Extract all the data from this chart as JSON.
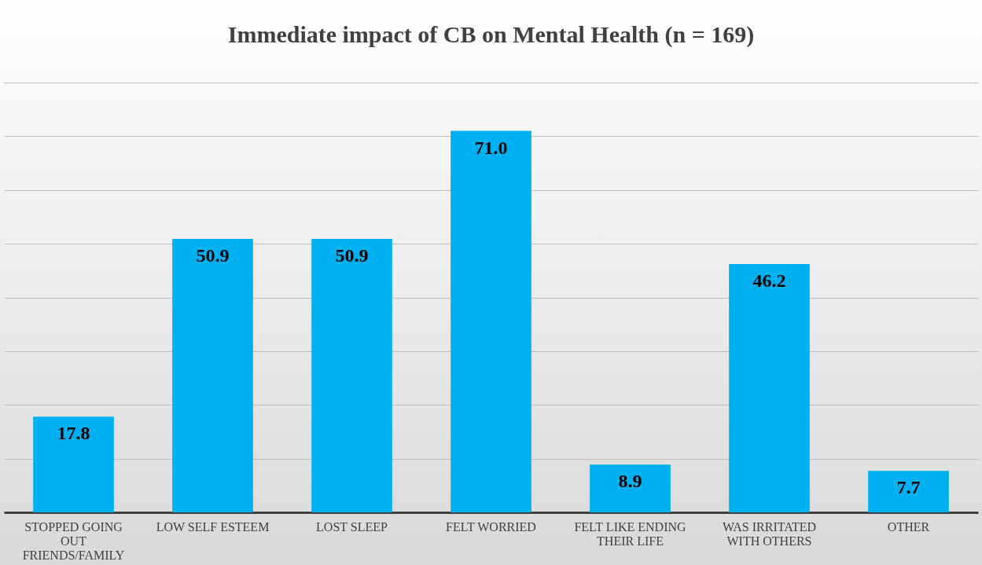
{
  "chart_data": {
    "type": "bar",
    "title": "Immediate impact of CB on Mental Health (n = 169)",
    "categories": [
      "STOPPED GOING OUT FRIENDS/FAMILY",
      "LOW SELF ESTEEM",
      "LOST SLEEP",
      "FELT WORRIED",
      "FELT LIKE ENDING THEIR LIFE",
      "WAS IRRITATED WITH OTHERS",
      "OTHER"
    ],
    "values": [
      17.8,
      50.9,
      50.9,
      71.0,
      8.9,
      46.2,
      7.7
    ],
    "value_labels": [
      "17.8",
      "50.9",
      "50.9",
      "71.0",
      "8.9",
      "46.2",
      "7.7"
    ],
    "color": "#00b0f0",
    "ylim": [
      0,
      80
    ],
    "yticks": [
      {
        "value": 0,
        "label": null
      },
      {
        "value": 10,
        "label": null
      },
      {
        "value": 20,
        "label": null
      },
      {
        "value": 30,
        "label": null
      },
      {
        "value": 40,
        "label": null
      },
      {
        "value": 50,
        "label": null
      },
      {
        "value": 60,
        "label": null
      },
      {
        "value": 70,
        "label": null
      },
      {
        "value": 80,
        "label": null
      }
    ],
    "grid": "y",
    "tick_labels": "x"
  }
}
